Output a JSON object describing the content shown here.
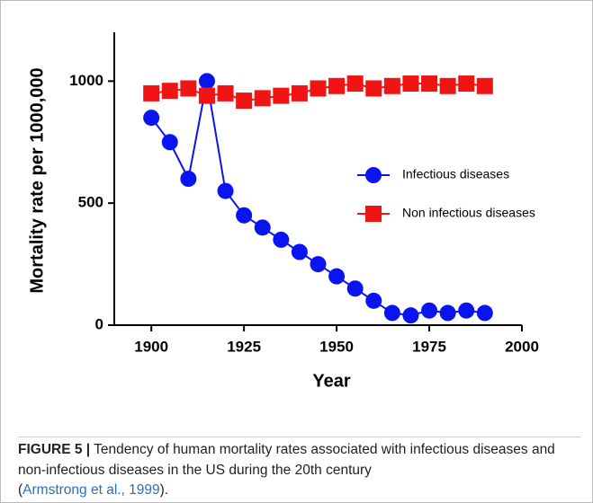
{
  "chart_data": {
    "type": "line",
    "x_label": "Year",
    "y_label": "Mortality rate per 1000,000",
    "x": [
      1900,
      1905,
      1910,
      1915,
      1920,
      1925,
      1930,
      1935,
      1940,
      1945,
      1950,
      1955,
      1960,
      1965,
      1970,
      1975,
      1980,
      1985,
      1990
    ],
    "series": [
      {
        "name": "Infectious diseases",
        "color": "#0a14f0",
        "marker": "circle",
        "values": [
          850,
          750,
          600,
          1000,
          550,
          450,
          400,
          350,
          300,
          250,
          200,
          150,
          100,
          50,
          40,
          60,
          50,
          60,
          50
        ]
      },
      {
        "name": "Non infectious diseases",
        "color": "#f01414",
        "marker": "square",
        "values": [
          950,
          960,
          970,
          940,
          950,
          920,
          930,
          940,
          950,
          970,
          980,
          990,
          970,
          980,
          990,
          990,
          980,
          990,
          980
        ]
      }
    ],
    "xlim": [
      1890,
      2000
    ],
    "xticks": [
      1900,
      1925,
      1950,
      1975,
      2000
    ],
    "ylim": [
      0,
      1200
    ],
    "yticks": [
      0,
      500,
      1000
    ]
  },
  "caption": {
    "label": "FIGURE 5 |",
    "text": "Tendency of human mortality rates associated with infectious diseases and non-infectious diseases in the US during the 20th century",
    "open": "(",
    "citation": "Armstrong et al., 1999",
    "close": ")."
  }
}
